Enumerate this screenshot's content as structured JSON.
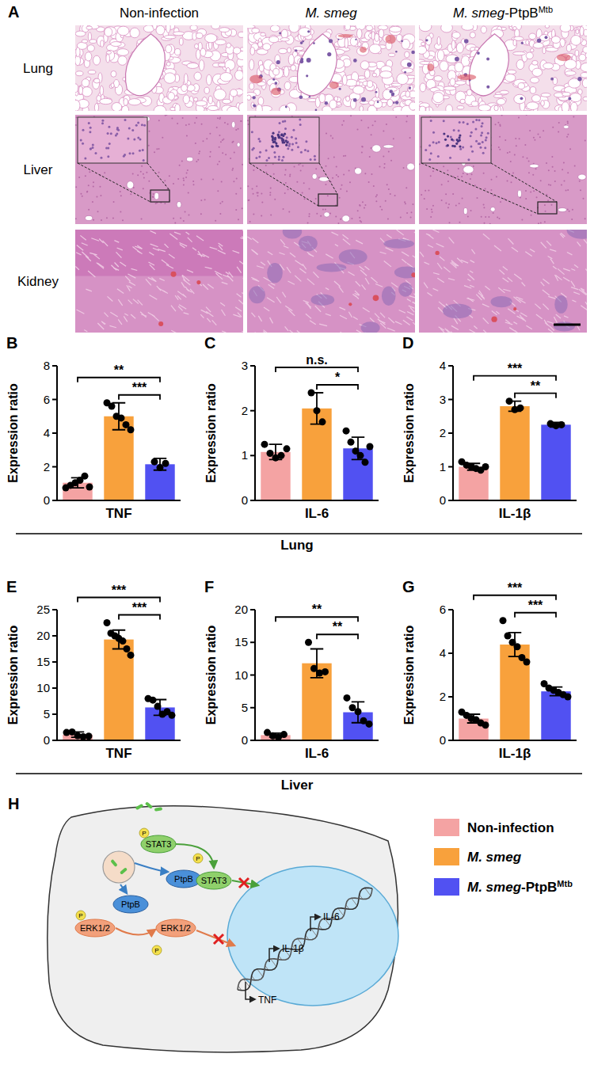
{
  "panel_a": {
    "letter": "A",
    "columns": [
      [
        {
          "text": "Non-infection"
        }
      ],
      [
        {
          "text": "M. smeg",
          "style": "italic"
        }
      ],
      [
        {
          "text": "M. smeg",
          "style": "italic"
        },
        {
          "text": "-PtpB"
        },
        {
          "text": "Mtb",
          "style": "sup"
        }
      ]
    ],
    "rows": [
      "Lung",
      "Liver",
      "Kidney"
    ]
  },
  "chart_data": [
    {
      "type": "bar",
      "panel": "B",
      "x_label": "TNF",
      "y_label": "Expression ratio",
      "categories": [
        null,
        null,
        null
      ],
      "values": [
        1.05,
        5.0,
        2.15
      ],
      "errors": [
        0.3,
        0.8,
        0.35
      ],
      "points": [
        [
          0.75,
          0.9,
          1.05,
          1.2,
          1.45,
          0.8
        ],
        [
          5.8,
          5.6,
          5.0,
          4.9,
          4.5,
          4.2
        ],
        [
          2.3,
          1.95,
          2.2
        ]
      ],
      "colors": [
        "#F4A3A3",
        "#F8A13C",
        "#5151F2"
      ],
      "ylim": [
        0,
        8
      ],
      "yticks": [
        0,
        2,
        4,
        6,
        8
      ],
      "annotations": [
        {
          "from": 0,
          "to": 2,
          "text": "**"
        },
        {
          "from": 1,
          "to": 2,
          "text": "***"
        }
      ]
    },
    {
      "type": "bar",
      "panel": "C",
      "x_label": "IL-6",
      "y_label": "Expression ratio",
      "categories": [
        null,
        null,
        null
      ],
      "values": [
        1.08,
        2.05,
        1.16
      ],
      "errors": [
        0.17,
        0.35,
        0.25
      ],
      "points": [
        [
          1.25,
          1.05,
          0.95,
          1.0,
          1.15
        ],
        [
          2.4,
          2.0,
          1.75
        ],
        [
          1.55,
          1.3,
          1.1,
          1.0,
          0.85,
          1.2
        ]
      ],
      "colors": [
        "#F4A3A3",
        "#F8A13C",
        "#5151F2"
      ],
      "ylim": [
        0,
        3
      ],
      "yticks": [
        0,
        1,
        2,
        3
      ],
      "annotations": [
        {
          "from": 0,
          "to": 2,
          "text": "n.s."
        },
        {
          "from": 1,
          "to": 2,
          "text": "*"
        }
      ]
    },
    {
      "type": "bar",
      "panel": "D",
      "x_label": "IL-1β",
      "y_label": "Expression ratio",
      "categories": [
        null,
        null,
        null
      ],
      "values": [
        1.0,
        2.8,
        2.25
      ],
      "errors": [
        0.1,
        0.15,
        0.07
      ],
      "points": [
        [
          1.15,
          1.05,
          1.0,
          0.95,
          0.9,
          1.0
        ],
        [
          2.95,
          2.7,
          2.75
        ],
        [
          2.28,
          2.22,
          2.25
        ]
      ],
      "colors": [
        "#F4A3A3",
        "#F8A13C",
        "#5151F2"
      ],
      "ylim": [
        0,
        4
      ],
      "yticks": [
        0,
        1,
        2,
        3,
        4
      ],
      "annotations": [
        {
          "from": 0,
          "to": 2,
          "text": "***"
        },
        {
          "from": 1,
          "to": 2,
          "text": "**"
        }
      ]
    },
    {
      "type": "bar",
      "panel": "E",
      "x_label": "TNF",
      "y_label": "Expression ratio",
      "categories": [
        null,
        null,
        null
      ],
      "values": [
        1.1,
        19.3,
        6.3
      ],
      "errors": [
        0.5,
        1.8,
        1.5
      ],
      "points": [
        [
          1.5,
          1.6,
          0.9,
          0.7,
          0.8
        ],
        [
          22.5,
          20.5,
          20.0,
          19.5,
          19.0,
          17.5,
          16.3
        ],
        [
          8.0,
          7.7,
          6.5,
          5.0,
          5.5,
          4.8
        ]
      ],
      "colors": [
        "#F4A3A3",
        "#F8A13C",
        "#5151F2"
      ],
      "ylim": [
        0,
        25
      ],
      "yticks": [
        0,
        5,
        10,
        15,
        20,
        25
      ],
      "annotations": [
        {
          "from": 0,
          "to": 2,
          "text": "***"
        },
        {
          "from": 1,
          "to": 2,
          "text": "***"
        }
      ]
    },
    {
      "type": "bar",
      "panel": "F",
      "x_label": "IL-6",
      "y_label": "Expression ratio",
      "categories": [
        null,
        null,
        null
      ],
      "values": [
        0.8,
        11.8,
        4.3
      ],
      "errors": [
        0.3,
        2.2,
        1.6
      ],
      "points": [
        [
          1.2,
          0.7,
          0.5,
          0.9
        ],
        [
          15.0,
          11.0,
          10.3,
          10.5
        ],
        [
          6.5,
          5.0,
          4.4,
          3.0,
          2.5
        ]
      ],
      "colors": [
        "#F4A3A3",
        "#F8A13C",
        "#5151F2"
      ],
      "ylim": [
        0,
        20
      ],
      "yticks": [
        0,
        5,
        10,
        15,
        20
      ],
      "annotations": [
        {
          "from": 0,
          "to": 2,
          "text": "**"
        },
        {
          "from": 1,
          "to": 2,
          "text": "**"
        }
      ]
    },
    {
      "type": "bar",
      "panel": "G",
      "x_label": "IL-1β",
      "y_label": "Expression ratio",
      "categories": [
        null,
        null,
        null
      ],
      "values": [
        1.0,
        4.4,
        2.25
      ],
      "errors": [
        0.2,
        0.55,
        0.2
      ],
      "points": [
        [
          1.3,
          1.15,
          1.0,
          0.95,
          0.8,
          0.7
        ],
        [
          5.5,
          4.8,
          4.5,
          4.3,
          3.8,
          3.6
        ],
        [
          2.6,
          2.4,
          2.3,
          2.2,
          2.1,
          2.0
        ]
      ],
      "colors": [
        "#F4A3A3",
        "#F8A13C",
        "#5151F2"
      ],
      "ylim": [
        0,
        6
      ],
      "yticks": [
        0,
        2,
        4,
        6
      ],
      "annotations": [
        {
          "from": 0,
          "to": 2,
          "text": "***"
        },
        {
          "from": 1,
          "to": 2,
          "text": "***"
        }
      ]
    }
  ],
  "row_labels": [
    "Lung",
    "Liver"
  ],
  "panel_h": {
    "letter": "H",
    "phospho": "P",
    "ptpb": "PtpB",
    "stat3": "STAT3",
    "erk": "ERK1/2",
    "genes": [
      "IL-6",
      "IL-1β",
      "TNF"
    ],
    "legend": [
      {
        "label": [
          {
            "text": "Non-infection"
          }
        ],
        "color": "#F4A3A3"
      },
      {
        "label": [
          {
            "text": "M. smeg",
            "style": "italic"
          }
        ],
        "color": "#F8A13C"
      },
      {
        "label": [
          {
            "text": "M. smeg",
            "style": "italic"
          },
          {
            "text": "-PtpB"
          },
          {
            "text": "Mtb",
            "style": "sup"
          }
        ],
        "color": "#5151F2"
      }
    ]
  }
}
